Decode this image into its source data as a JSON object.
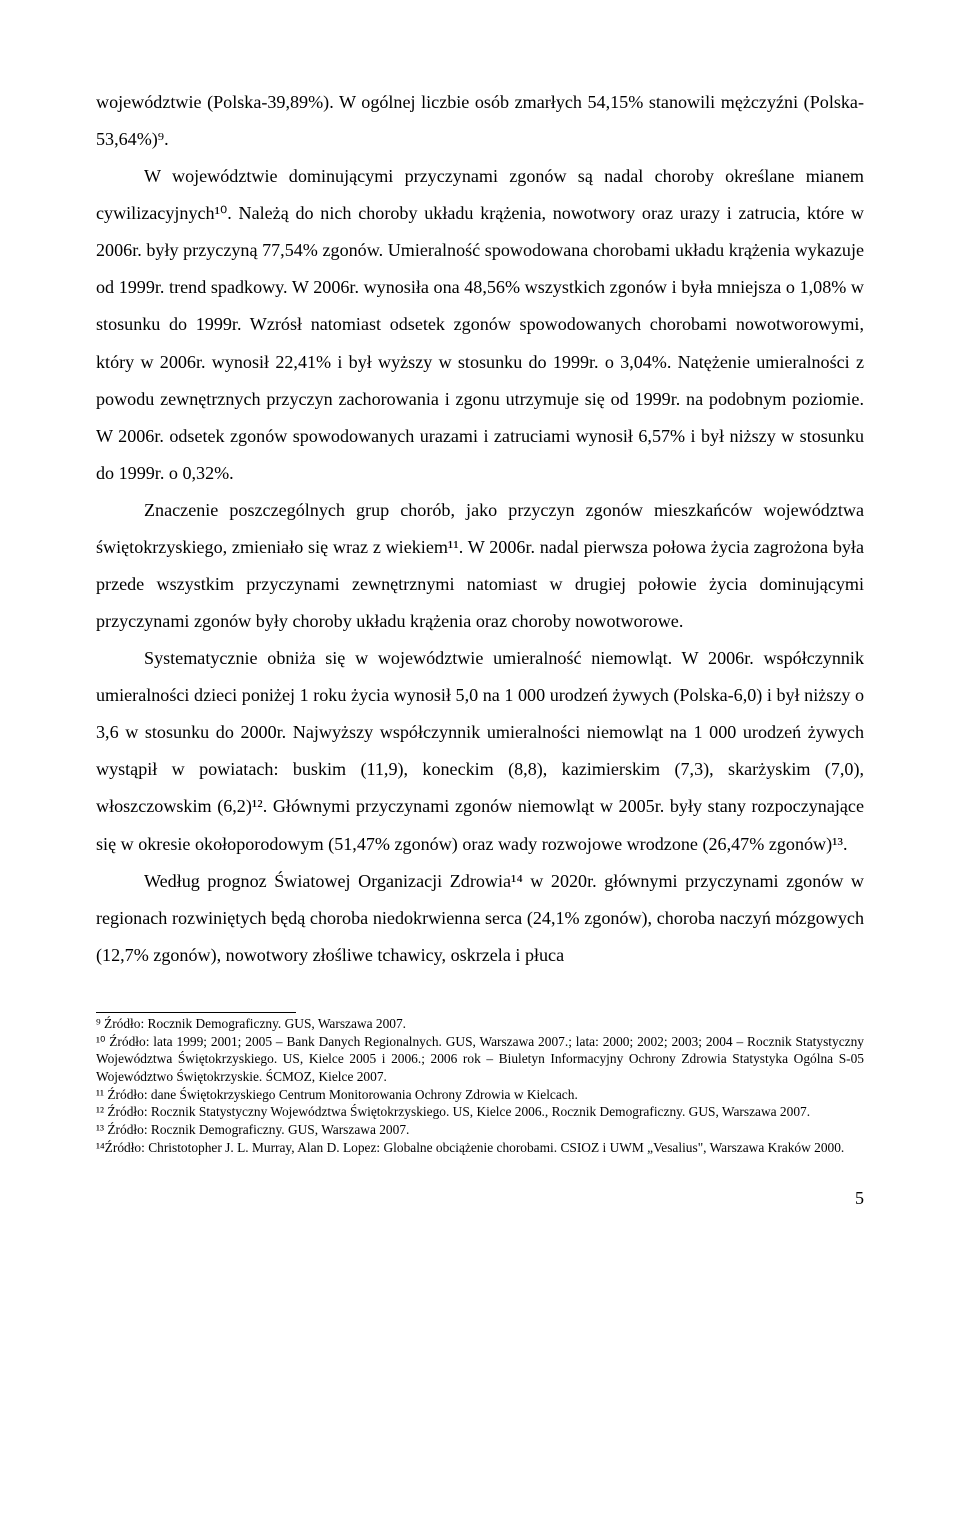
{
  "paragraphs": {
    "p1": "województwie (Polska-39,89%). W ogólnej liczbie osób zmarłych 54,15% stanowili mężczyźni (Polska-53,64%)⁹.",
    "p2": "W województwie dominującymi przyczynami zgonów są nadal choroby określane mianem cywilizacyjnych¹⁰. Należą do nich choroby układu krążenia, nowotwory oraz urazy i zatrucia, które w 2006r. były przyczyną 77,54% zgonów. Umieralność spowodowana chorobami układu krążenia wykazuje od 1999r. trend spadkowy. W 2006r. wynosiła ona 48,56% wszystkich zgonów i była mniejsza o 1,08% w stosunku do 1999r. Wzrósł natomiast odsetek zgonów spowodowanych chorobami nowotworowymi, który w 2006r. wynosił 22,41% i był wyższy w stosunku do 1999r. o 3,04%. Natężenie umieralności z powodu zewnętrznych przyczyn zachorowania i zgonu utrzymuje się od 1999r. na podobnym poziomie. W 2006r. odsetek zgonów spowodowanych urazami i zatruciami wynosił 6,57% i był niższy w stosunku do 1999r. o 0,32%.",
    "p3": "Znaczenie poszczególnych grup chorób, jako przyczyn zgonów mieszkańców województwa świętokrzyskiego, zmieniało się wraz z wiekiem¹¹. W 2006r. nadal pierwsza połowa życia zagrożona była przede wszystkim przyczynami zewnętrznymi natomiast w drugiej połowie życia dominującymi przyczynami zgonów były choroby układu krążenia oraz choroby nowotworowe.",
    "p4": "Systematycznie obniża się w województwie umieralność niemowląt. W 2006r. współczynnik umieralności dzieci poniżej 1 roku życia wynosił 5,0 na 1 000 urodzeń żywych (Polska-6,0) i był niższy o 3,6 w stosunku do 2000r. Najwyższy współczynnik umieralności niemowląt na 1 000 urodzeń żywych wystąpił w powiatach: buskim (11,9), koneckim (8,8), kazimierskim (7,3), skarżyskim (7,0), włoszczowskim (6,2)¹². Głównymi przyczynami zgonów niemowląt w 2005r. były stany rozpoczynające się w okresie okołoporodowym (51,47% zgonów) oraz wady rozwojowe wrodzone (26,47% zgonów)¹³.",
    "p5": "Według prognoz Światowej Organizacji Zdrowia¹⁴ w 2020r. głównymi przyczynami zgonów w regionach rozwiniętych będą choroba niedokrwienna serca (24,1% zgonów), choroba naczyń mózgowych (12,7% zgonów), nowotwory złośliwe tchawicy, oskrzela i płuca"
  },
  "footnotes": {
    "f9": "⁹ Źródło: Rocznik Demograficzny. GUS, Warszawa 2007.",
    "f10": "¹⁰ Źródło: lata 1999; 2001; 2005 – Bank Danych Regionalnych. GUS, Warszawa 2007.; lata: 2000; 2002; 2003; 2004 – Rocznik Statystyczny Województwa Świętokrzyskiego. US, Kielce 2005 i 2006.; 2006 rok – Biuletyn Informacyjny Ochrony Zdrowia Statystyka Ogólna S-05 Województwo Świętokrzyskie. ŚCMOZ, Kielce 2007.",
    "f11": "¹¹ Źródło: dane Świętokrzyskiego Centrum Monitorowania Ochrony Zdrowia w Kielcach.",
    "f12": "¹² Źródło: Rocznik Statystyczny Województwa Świętokrzyskiego. US, Kielce 2006., Rocznik Demograficzny. GUS, Warszawa 2007.",
    "f13": "¹³ Źródło: Rocznik Demograficzny. GUS, Warszawa 2007.",
    "f14": "¹⁴Źródło: Christotopher J. L. Murray, Alan D. Lopez: Globalne obciążenie chorobami. CSIOZ i UWM „Vesalius\", Warszawa Kraków 2000."
  },
  "pagenum": "5"
}
